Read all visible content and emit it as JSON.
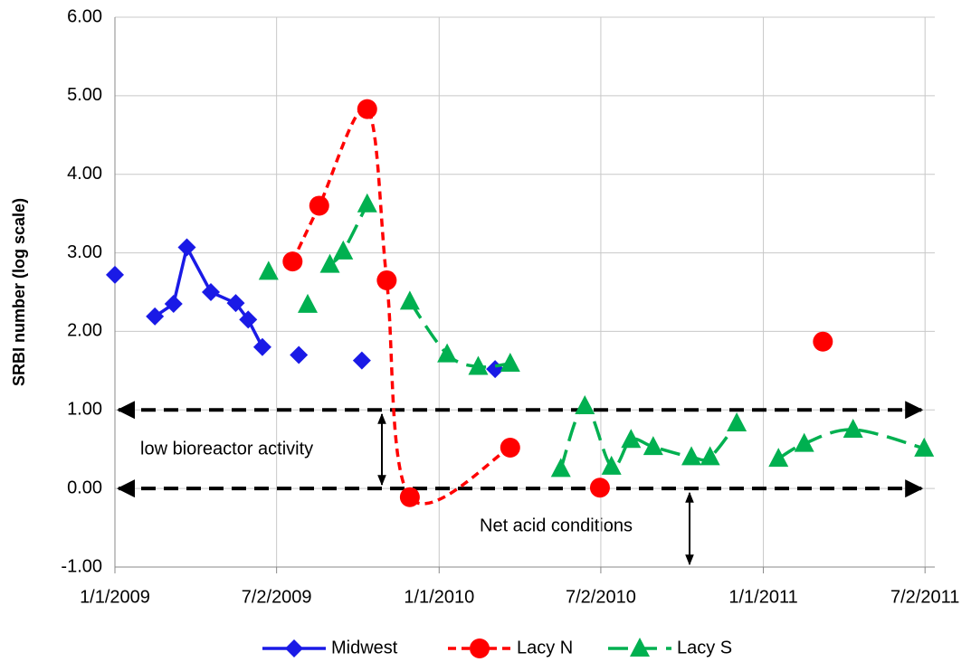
{
  "chart_data": {
    "type": "line",
    "y_label": "SRBI number (log scale)",
    "xlim": [
      "2009-01-01",
      "2011-07-13"
    ],
    "xticks": [
      {
        "value": "2009-01-01",
        "label": "1/1/2009"
      },
      {
        "value": "2009-07-02",
        "label": "7/2/2009"
      },
      {
        "value": "2010-01-01",
        "label": "1/1/2010"
      },
      {
        "value": "2010-07-02",
        "label": "7/2/2010"
      },
      {
        "value": "2011-01-01",
        "label": "1/1/2011"
      },
      {
        "value": "2011-07-02",
        "label": "7/2/2011"
      }
    ],
    "ylim": [
      -1,
      6
    ],
    "yticks": [
      {
        "value": -1,
        "label": "-1.00"
      },
      {
        "value": 0,
        "label": "0.00"
      },
      {
        "value": 1,
        "label": "1.00"
      },
      {
        "value": 2,
        "label": "2.00"
      },
      {
        "value": 3,
        "label": "3.00"
      },
      {
        "value": 4,
        "label": "4.00"
      },
      {
        "value": 5,
        "label": "5.00"
      },
      {
        "value": 6,
        "label": "6.00"
      }
    ],
    "grid": true,
    "legend": "bottom",
    "reference_lines": [
      1,
      0
    ],
    "annotations": [
      "low bioreactor activity",
      "Net acid conditions"
    ],
    "series": [
      {
        "name": "Midwest",
        "color": "#1a1ae6",
        "marker": "diamond",
        "dashed": false,
        "smooth": false,
        "x": [
          "2009-01-01",
          null,
          "2009-02-15",
          "2009-03-08",
          "2009-03-23",
          "2009-04-19",
          "2009-05-17",
          "2009-05-31",
          "2009-06-16",
          null,
          "2009-07-27",
          null,
          "2009-10-06",
          null,
          "2010-03-05"
        ],
        "values": [
          2.72,
          null,
          2.19,
          2.35,
          3.07,
          2.5,
          2.36,
          2.15,
          1.8,
          null,
          1.7,
          null,
          1.63,
          null,
          1.52
        ]
      },
      {
        "name": "Lacy N",
        "color": "#ff0000",
        "marker": "circle",
        "dashed": true,
        "smooth": true,
        "x": [
          "2009-07-20",
          "2009-08-19",
          "2009-10-12",
          "2009-11-03",
          "2009-11-29",
          "2010-03-22",
          null,
          "2010-07-01",
          null,
          "2011-03-09"
        ],
        "values": [
          2.89,
          3.6,
          4.83,
          2.65,
          -0.11,
          0.52,
          null,
          0.01,
          null,
          1.87
        ]
      },
      {
        "name": "Lacy S",
        "color": "#00b050",
        "marker": "triangle",
        "dashed": true,
        "smooth": true,
        "x": [
          "2009-06-23",
          null,
          "2009-08-06",
          null,
          "2009-08-31",
          "2009-09-15",
          "2009-10-12",
          null,
          "2009-11-29",
          "2010-01-10",
          "2010-02-14",
          "2010-03-22",
          null,
          "2010-05-18",
          "2010-06-14",
          "2010-07-14",
          "2010-08-05",
          "2010-08-30",
          "2010-10-12",
          "2010-11-02",
          "2010-12-02",
          null,
          "2011-01-18",
          "2011-02-16",
          "2011-04-12",
          "2011-07-01"
        ],
        "values": [
          2.76,
          null,
          2.34,
          null,
          2.85,
          3.02,
          3.62,
          null,
          2.38,
          1.71,
          1.55,
          1.59,
          null,
          0.25,
          1.05,
          0.28,
          0.62,
          0.53,
          0.4,
          0.4,
          0.83,
          null,
          0.38,
          0.57,
          0.75,
          0.51
        ]
      }
    ]
  }
}
